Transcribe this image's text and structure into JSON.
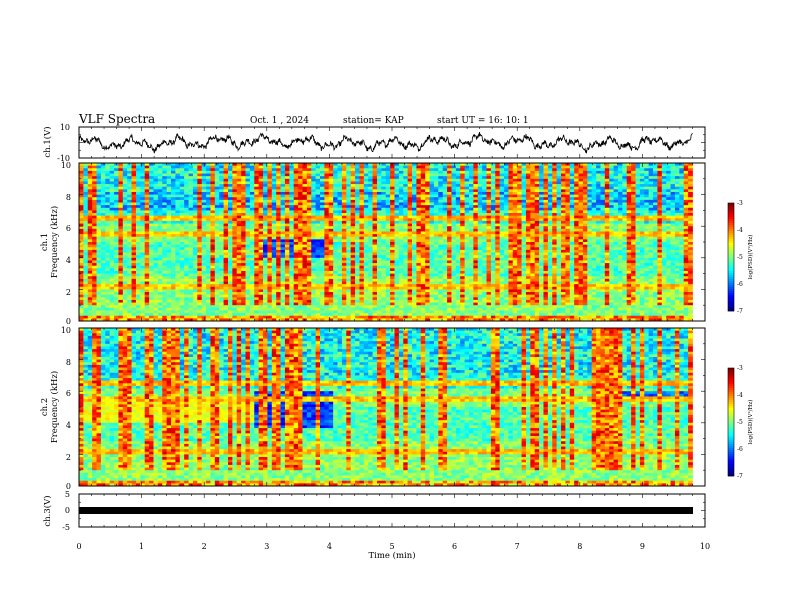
{
  "header": {
    "title": "VLF Spectra",
    "date": "Oct. 1  , 2024",
    "station": "station= KAP",
    "start": "start  UT  =   16: 10: 1"
  },
  "chart_data": [
    {
      "type": "line",
      "ylabel": "ch.1(V)",
      "ylim": [
        -10,
        10
      ],
      "y_ticks": [
        "10",
        "-10"
      ],
      "xlim": [
        0,
        10
      ],
      "description": "ch.1 voltage waveform fluctuating roughly between -6 and 6 V across the record"
    },
    {
      "type": "heatmap",
      "ylabel_line1": "ch.1",
      "ylabel_line2": "Frequency  (kHz)",
      "ylim": [
        0,
        10
      ],
      "y_ticks": [
        "0",
        "2",
        "4",
        "6",
        "8",
        "10"
      ],
      "xlim": [
        0,
        10
      ],
      "data_end_min": 9.8,
      "colorbar": {
        "label": "log(PSD)(V²/Hz)",
        "range": [
          -7,
          -3
        ],
        "ticks": [
          "-3",
          "-4",
          "-5",
          "-6",
          "-7"
        ]
      }
    },
    {
      "type": "heatmap",
      "ylabel_line1": "ch.2",
      "ylabel_line2": "Frequency  (kHz)",
      "ylim": [
        0,
        10
      ],
      "y_ticks": [
        "0",
        "2",
        "4",
        "6",
        "8",
        "10"
      ],
      "xlim": [
        0,
        10
      ],
      "data_end_min": 9.8,
      "colorbar": {
        "label": "log(PSD)(V²/Hz)",
        "range": [
          -7,
          -3
        ],
        "ticks": [
          "-3",
          "-4",
          "-5",
          "-6",
          "-7"
        ]
      }
    },
    {
      "type": "line",
      "ylabel": "ch.3(V)",
      "ylim": [
        -5,
        5
      ],
      "y_ticks": [
        "5",
        "0",
        "-5"
      ],
      "xlim": [
        0,
        10
      ],
      "xlabel": "Time  (min)",
      "x_ticks": [
        "0",
        "1",
        "2",
        "3",
        "4",
        "5",
        "6",
        "7",
        "8",
        "9",
        "10"
      ],
      "description": "ch.3 held at about -0.5 V as a thick flat band"
    }
  ]
}
